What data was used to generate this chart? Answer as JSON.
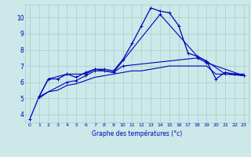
{
  "x": [
    0,
    1,
    2,
    3,
    4,
    5,
    6,
    7,
    8,
    9,
    10,
    11,
    12,
    13,
    14,
    15,
    16,
    17,
    18,
    19,
    20,
    21,
    22,
    23
  ],
  "line1": [
    3.7,
    5.1,
    6.2,
    6.2,
    6.5,
    6.3,
    6.6,
    6.8,
    6.8,
    6.7,
    7.4,
    8.4,
    9.5,
    10.6,
    10.4,
    10.3,
    9.5,
    7.8,
    7.6,
    7.3,
    6.2,
    6.6,
    6.5,
    6.4
  ],
  "line2": [
    null,
    5.1,
    6.2,
    null,
    6.5,
    null,
    6.5,
    6.8,
    null,
    6.6,
    null,
    null,
    null,
    null,
    10.2,
    null,
    null,
    null,
    7.6,
    7.3,
    null,
    6.5,
    null,
    6.4
  ],
  "line3": [
    null,
    5.1,
    null,
    null,
    6.0,
    6.1,
    6.4,
    6.7,
    6.7,
    6.6,
    7.0,
    null,
    null,
    null,
    null,
    null,
    null,
    null,
    7.5,
    7.2,
    null,
    null,
    null,
    6.4
  ],
  "line4": [
    null,
    5.0,
    5.4,
    5.5,
    5.8,
    5.9,
    6.1,
    6.3,
    6.4,
    6.5,
    6.6,
    6.7,
    6.7,
    6.8,
    6.9,
    7.0,
    7.0,
    7.0,
    7.0,
    7.0,
    6.5,
    6.5,
    6.5,
    6.5
  ],
  "background": "#cce8e8",
  "grid_color": "#aacccc",
  "line_color": "#0000bb",
  "xlabel": "Graphe des températures (°c)",
  "yticks": [
    4,
    5,
    6,
    7,
    8,
    9,
    10
  ],
  "xticks": [
    0,
    1,
    2,
    3,
    4,
    5,
    6,
    7,
    8,
    9,
    10,
    11,
    12,
    13,
    14,
    15,
    16,
    17,
    18,
    19,
    20,
    21,
    22,
    23
  ],
  "xlim": [
    -0.5,
    23.5
  ],
  "ylim": [
    3.5,
    10.8
  ],
  "figsize": [
    3.2,
    2.0
  ],
  "dpi": 100
}
